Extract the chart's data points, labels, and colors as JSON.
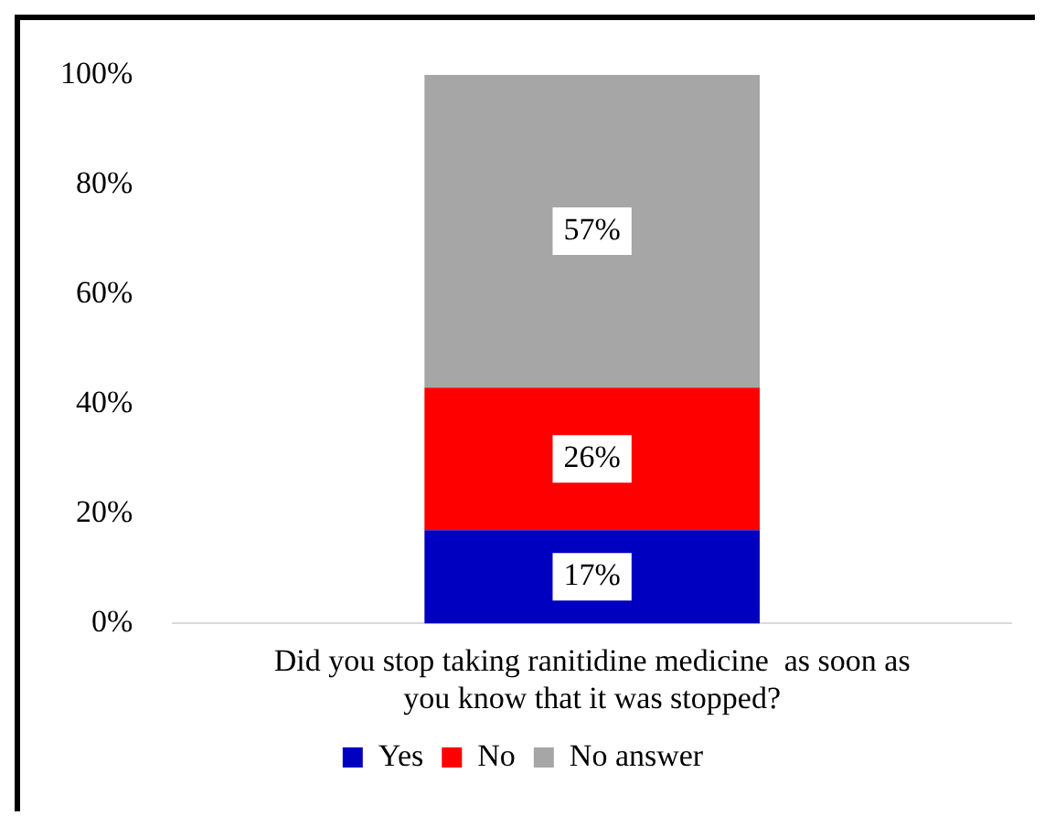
{
  "chart_data": {
    "type": "bar",
    "stacked": true,
    "categories": [
      "Did you stop taking ranitidine medicine  as soon as you know that it was stopped?"
    ],
    "series": [
      {
        "name": "Yes",
        "color": "#0000c0",
        "values": [
          17
        ],
        "value_labels": [
          "17%"
        ]
      },
      {
        "name": "No",
        "color": "#ff0000",
        "values": [
          26
        ],
        "value_labels": [
          "26%"
        ]
      },
      {
        "name": "No answer",
        "color": "#a6a6a6",
        "values": [
          57
        ],
        "value_labels": [
          "57%"
        ]
      }
    ],
    "ylim": [
      0,
      100
    ],
    "yticks": [
      {
        "value": 0,
        "label": "0%"
      },
      {
        "value": 20,
        "label": "20%"
      },
      {
        "value": 40,
        "label": "40%"
      },
      {
        "value": 60,
        "label": "60%"
      },
      {
        "value": 80,
        "label": "80%"
      },
      {
        "value": 100,
        "label": "100%"
      }
    ],
    "grid": false,
    "legend": "bottom"
  }
}
